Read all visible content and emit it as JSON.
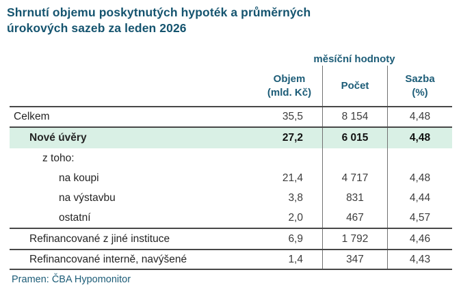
{
  "title": {
    "line1": "Shrnutí objemu poskytnutých hypoték a průměrných",
    "line2": "úrokových sazeb za leden 2026"
  },
  "table": {
    "group_header": "měsíční hodnoty",
    "columns": {
      "objem_line1": "Objem",
      "objem_line2": "(mld. Kč)",
      "pocet": "Počet",
      "sazba_line1": "Sazba",
      "sazba_line2": "(%)"
    },
    "rows": [
      {
        "label": "Celkem",
        "objem": "35,5",
        "pocet": "8 154",
        "sazba": "4,48"
      },
      {
        "label": "Nové úvěry",
        "objem": "27,2",
        "pocet": "6 015",
        "sazba": "4,48"
      },
      {
        "label": "z toho:",
        "objem": "",
        "pocet": "",
        "sazba": ""
      },
      {
        "label": "na koupi",
        "objem": "21,4",
        "pocet": "4 717",
        "sazba": "4,48"
      },
      {
        "label": "na výstavbu",
        "objem": "3,8",
        "pocet": "831",
        "sazba": "4,44"
      },
      {
        "label": "ostatní",
        "objem": "2,0",
        "pocet": "467",
        "sazba": "4,57"
      },
      {
        "label": "Refinancované z jiné instituce",
        "objem": "6,9",
        "pocet": "1 792",
        "sazba": "4,46"
      },
      {
        "label": "Refinancované interně, navýšené",
        "objem": "1,4",
        "pocet": "347",
        "sazba": "4,43"
      }
    ]
  },
  "source": "Pramen: ČBA Hypomonitor",
  "colors": {
    "accent_teal": "#1C5C77",
    "title_teal": "#15546F",
    "highlight_mint": "#d9f0e5"
  }
}
